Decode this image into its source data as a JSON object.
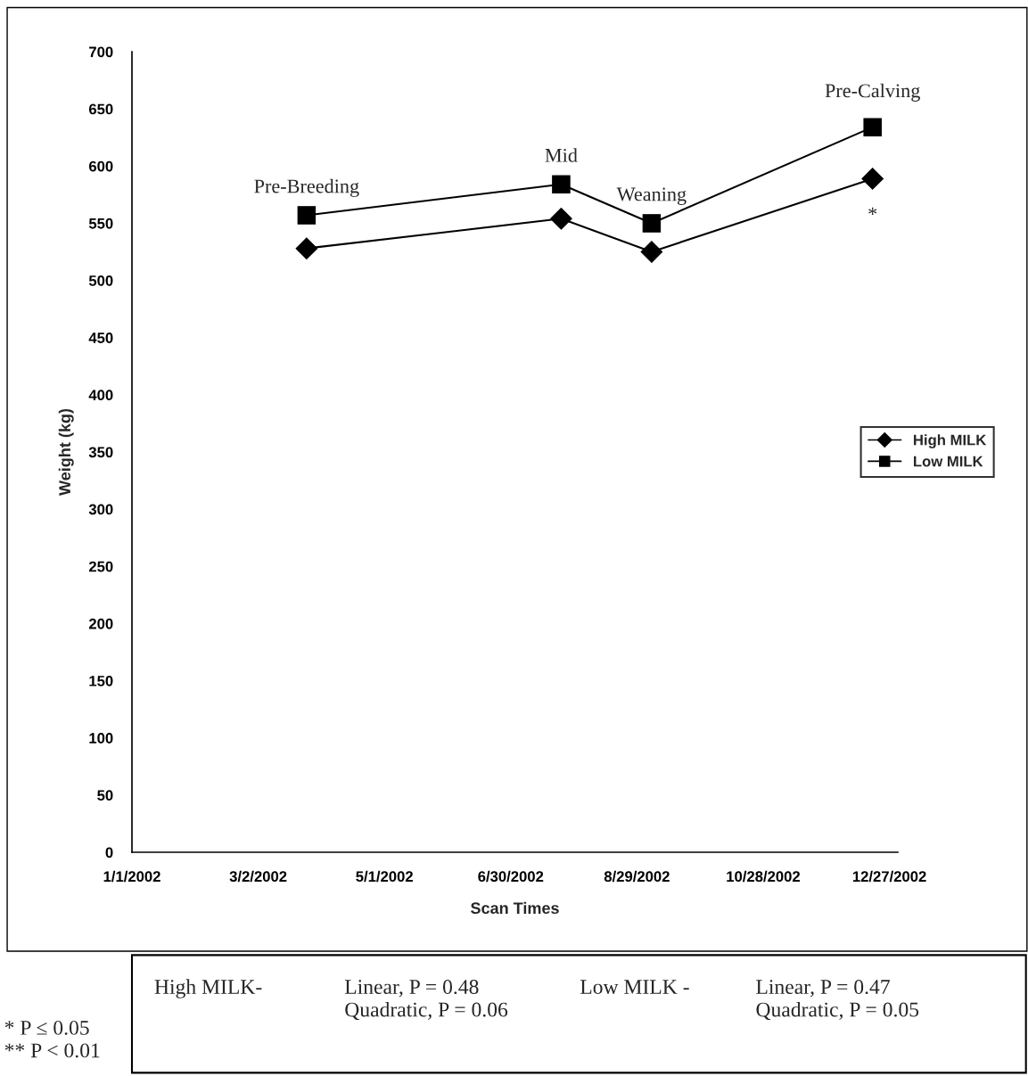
{
  "chart_data": {
    "type": "line",
    "xlabel": "Scan Times",
    "ylabel": "Weight (kg)",
    "series": [
      {
        "name": "High MILK",
        "color": "#000000",
        "marker": "diamond",
        "x": [
          "2002-03-25",
          "2002-07-24",
          "2002-09-05",
          "2002-12-19"
        ],
        "values": [
          528,
          554,
          525,
          589
        ]
      },
      {
        "name": "Low MILK",
        "color": "#000000",
        "marker": "square",
        "x": [
          "2002-03-25",
          "2002-07-24",
          "2002-09-05",
          "2002-12-19"
        ],
        "values": [
          557,
          584,
          550,
          634
        ]
      }
    ],
    "xlim": [
      "2002-01-01",
      "2002-12-31"
    ],
    "xticks": [
      {
        "value": "2002-01-01",
        "label": "1/1/2002"
      },
      {
        "value": "2002-03-02",
        "label": "3/2/2002"
      },
      {
        "value": "2002-05-01",
        "label": "5/1/2002"
      },
      {
        "value": "2002-06-30",
        "label": "6/30/2002"
      },
      {
        "value": "2002-08-29",
        "label": "8/29/2002"
      },
      {
        "value": "2002-10-28",
        "label": "10/28/2002"
      },
      {
        "value": "2002-12-27",
        "label": "12/27/2002"
      }
    ],
    "ylim": [
      0,
      700
    ],
    "yticks": [
      0,
      50,
      100,
      150,
      200,
      250,
      300,
      350,
      400,
      450,
      500,
      550,
      600,
      650,
      700
    ],
    "grid": false,
    "legend": "right",
    "line_style": "solid",
    "annotations": [
      {
        "text": "Pre-Breeding",
        "x": "2002-03-25",
        "y": 557
      },
      {
        "text": "Mid",
        "x": "2002-07-24",
        "y": 584
      },
      {
        "text": "Weaning",
        "x": "2002-09-05",
        "y": 550
      },
      {
        "text": "Pre-Calving",
        "x": "2002-12-19",
        "y": 634
      },
      {
        "text": "*",
        "x": "2002-12-19",
        "y": 589
      },
      "High MILK-",
      "Linear, P = 0.48\nQuadratic, P = 0.06",
      "Low MILK -",
      "Linear, P = 0.47\nQuadratic, P = 0.05",
      "* P ≤ 0.05\n** P < 0.01"
    ]
  }
}
